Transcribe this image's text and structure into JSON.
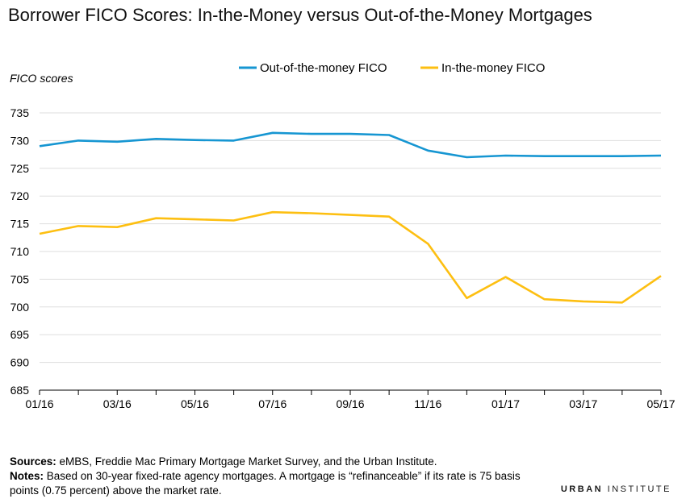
{
  "title": "Borrower FICO Scores: In-the-Money versus Out-of-the-Money Mortgages",
  "colors": {
    "out_of_money": "#1696d2",
    "in_money": "#fdbf11",
    "grid": "#dedede"
  },
  "footer": {
    "sources_label": "Sources:",
    "sources_text": " eMBS, Freddie Mac Primary Mortgage Market Survey, and the Urban Institute.",
    "notes_label": "Notes:",
    "notes_text": " Based on 30-year fixed-rate agency mortgages. A mortgage is “refinanceable” if its rate is 75 basis points (0.75 percent) above the market rate."
  },
  "brand": {
    "bold": "URBAN",
    "thin": "INSTITUTE"
  },
  "chart_data": {
    "type": "line",
    "title": "Borrower FICO Scores: In-the-Money versus Out-of-the-Money Mortgages",
    "xlabel": "",
    "ylabel": "FICO scores",
    "ylim": [
      685,
      735
    ],
    "yticks": [
      685,
      690,
      695,
      700,
      705,
      710,
      715,
      720,
      725,
      730,
      735
    ],
    "x": [
      "01/16",
      "02/16",
      "03/16",
      "04/16",
      "05/16",
      "06/16",
      "07/16",
      "08/16",
      "09/16",
      "10/16",
      "11/16",
      "12/16",
      "01/17",
      "02/17",
      "03/17",
      "04/17",
      "05/17"
    ],
    "xtick_labels": [
      "01/16",
      "03/16",
      "05/16",
      "07/16",
      "09/16",
      "11/16",
      "01/17",
      "03/17",
      "05/17"
    ],
    "grid": true,
    "legend_position": "top",
    "series": [
      {
        "name": "Out-of-the-money FICO",
        "color": "#1696d2",
        "values": [
          729.0,
          730.0,
          729.8,
          730.3,
          730.1,
          730.0,
          731.4,
          731.2,
          731.2,
          731.0,
          728.2,
          727.0,
          727.3,
          727.2,
          727.2,
          727.2,
          727.3
        ]
      },
      {
        "name": "In-the-money FICO",
        "color": "#fdbf11",
        "values": [
          713.2,
          714.6,
          714.4,
          716.0,
          715.8,
          715.6,
          717.1,
          716.9,
          716.6,
          716.3,
          711.4,
          701.6,
          705.4,
          701.4,
          701.0,
          700.8,
          705.6
        ]
      }
    ]
  }
}
